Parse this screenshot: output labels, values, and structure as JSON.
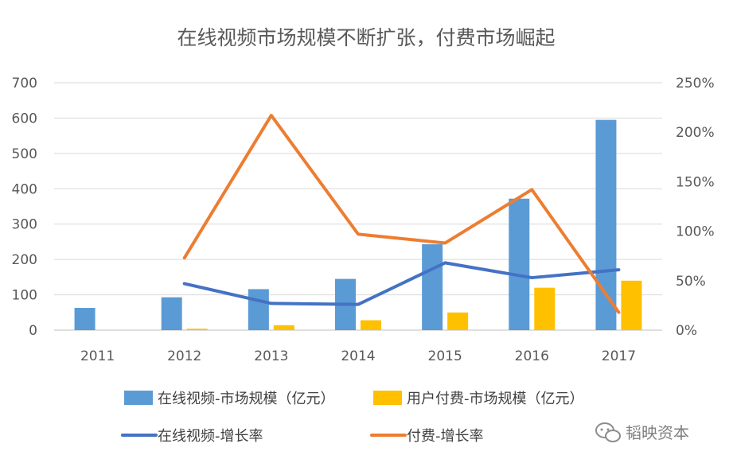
{
  "chart_data": {
    "type": "bar",
    "title": "在线视频市场规模不断扩张，付费市场崛起",
    "categories": [
      "2011",
      "2012",
      "2013",
      "2014",
      "2015",
      "2016",
      "2017"
    ],
    "y_left": {
      "ylim": [
        0,
        700
      ],
      "ticks": [
        "0",
        "100",
        "200",
        "300",
        "400",
        "500",
        "600",
        "700"
      ]
    },
    "y_right": {
      "ylim": [
        0,
        2.5
      ],
      "ticks": [
        "0%",
        "50%",
        "100%",
        "150%",
        "200%",
        "250%"
      ]
    },
    "grid": true,
    "legend_position": "bottom",
    "series": [
      {
        "name": "在线视频-市场规模（亿元）",
        "kind": "bar",
        "axis": "left",
        "color": "#5b9bd5",
        "values": [
          63,
          93,
          116,
          145,
          243,
          372,
          595
        ]
      },
      {
        "name": "用户付费-市场规模（亿元）",
        "kind": "bar",
        "axis": "left",
        "color": "#ffc000",
        "values": [
          null,
          4,
          14,
          28,
          50,
          120,
          140
        ]
      },
      {
        "name": "在线视频-增长率",
        "kind": "line",
        "axis": "right",
        "color": "#4472c4",
        "values": [
          null,
          0.47,
          0.27,
          0.26,
          0.68,
          0.53,
          0.61
        ]
      },
      {
        "name": "付费-增长率",
        "kind": "line",
        "axis": "right",
        "color": "#ed7d31",
        "values": [
          null,
          0.73,
          2.17,
          0.97,
          0.88,
          1.42,
          0.18
        ]
      }
    ]
  },
  "watermark": {
    "text": "韬映资本",
    "icon": "wechat-icon"
  }
}
